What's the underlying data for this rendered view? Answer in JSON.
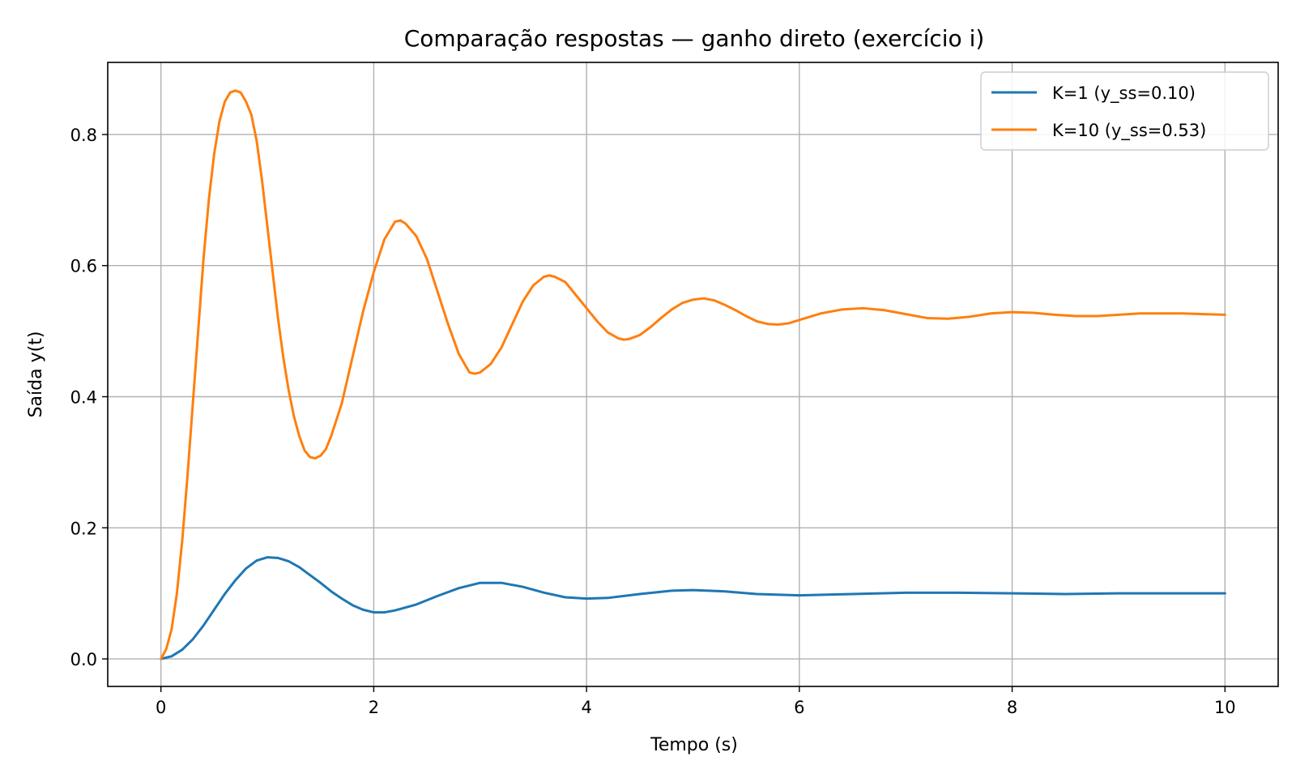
{
  "chart_data": {
    "type": "line",
    "title": "Comparação respostas — ganho direto (exercício i)",
    "xlabel": "Tempo (s)",
    "ylabel": "Saída y(t)",
    "xlim": [
      -0.5,
      10.5
    ],
    "ylim": [
      -0.042,
      0.91
    ],
    "xticks": [
      0,
      2,
      4,
      6,
      8,
      10
    ],
    "xtick_labels": [
      "0",
      "2",
      "4",
      "6",
      "8",
      "10"
    ],
    "yticks": [
      0.0,
      0.2,
      0.4,
      0.6,
      0.8
    ],
    "ytick_labels": [
      "0.0",
      "0.2",
      "0.4",
      "0.6",
      "0.8"
    ],
    "grid": true,
    "legend_position": "top-right",
    "series": [
      {
        "name": "K=1 (y_ss=0.10)",
        "color": "#1f77b4",
        "points": [
          [
            0,
            0
          ],
          [
            0.1,
            0.004
          ],
          [
            0.2,
            0.014
          ],
          [
            0.3,
            0.03
          ],
          [
            0.4,
            0.051
          ],
          [
            0.5,
            0.075
          ],
          [
            0.6,
            0.099
          ],
          [
            0.7,
            0.12
          ],
          [
            0.8,
            0.138
          ],
          [
            0.9,
            0.15
          ],
          [
            1.0,
            0.155
          ],
          [
            1.1,
            0.154
          ],
          [
            1.2,
            0.149
          ],
          [
            1.3,
            0.14
          ],
          [
            1.4,
            0.128
          ],
          [
            1.5,
            0.116
          ],
          [
            1.6,
            0.103
          ],
          [
            1.7,
            0.092
          ],
          [
            1.8,
            0.082
          ],
          [
            1.9,
            0.075
          ],
          [
            2.0,
            0.071
          ],
          [
            2.1,
            0.071
          ],
          [
            2.2,
            0.074
          ],
          [
            2.4,
            0.083
          ],
          [
            2.6,
            0.096
          ],
          [
            2.8,
            0.108
          ],
          [
            3.0,
            0.116
          ],
          [
            3.2,
            0.116
          ],
          [
            3.4,
            0.11
          ],
          [
            3.6,
            0.101
          ],
          [
            3.8,
            0.094
          ],
          [
            4.0,
            0.092
          ],
          [
            4.2,
            0.093
          ],
          [
            4.5,
            0.099
          ],
          [
            4.8,
            0.104
          ],
          [
            5.0,
            0.105
          ],
          [
            5.3,
            0.103
          ],
          [
            5.6,
            0.099
          ],
          [
            6.0,
            0.097
          ],
          [
            6.5,
            0.099
          ],
          [
            7.0,
            0.101
          ],
          [
            7.5,
            0.101
          ],
          [
            8.0,
            0.1
          ],
          [
            8.5,
            0.099
          ],
          [
            9.0,
            0.1
          ],
          [
            9.5,
            0.1
          ],
          [
            10.0,
            0.1
          ]
        ]
      },
      {
        "name": "K=10 (y_ss=0.53)",
        "color": "#ff7f0e",
        "points": [
          [
            0,
            0
          ],
          [
            0.05,
            0.015
          ],
          [
            0.1,
            0.045
          ],
          [
            0.15,
            0.1
          ],
          [
            0.2,
            0.18
          ],
          [
            0.25,
            0.28
          ],
          [
            0.3,
            0.39
          ],
          [
            0.35,
            0.5
          ],
          [
            0.4,
            0.61
          ],
          [
            0.45,
            0.7
          ],
          [
            0.5,
            0.77
          ],
          [
            0.55,
            0.82
          ],
          [
            0.6,
            0.85
          ],
          [
            0.65,
            0.864
          ],
          [
            0.7,
            0.867
          ],
          [
            0.75,
            0.864
          ],
          [
            0.8,
            0.85
          ],
          [
            0.85,
            0.83
          ],
          [
            0.9,
            0.79
          ],
          [
            0.95,
            0.73
          ],
          [
            1.0,
            0.66
          ],
          [
            1.05,
            0.59
          ],
          [
            1.1,
            0.52
          ],
          [
            1.15,
            0.46
          ],
          [
            1.2,
            0.41
          ],
          [
            1.25,
            0.37
          ],
          [
            1.3,
            0.34
          ],
          [
            1.35,
            0.318
          ],
          [
            1.4,
            0.308
          ],
          [
            1.45,
            0.306
          ],
          [
            1.5,
            0.31
          ],
          [
            1.55,
            0.32
          ],
          [
            1.6,
            0.34
          ],
          [
            1.7,
            0.39
          ],
          [
            1.8,
            0.46
          ],
          [
            1.9,
            0.53
          ],
          [
            2.0,
            0.59
          ],
          [
            2.1,
            0.64
          ],
          [
            2.2,
            0.667
          ],
          [
            2.25,
            0.669
          ],
          [
            2.3,
            0.664
          ],
          [
            2.4,
            0.645
          ],
          [
            2.5,
            0.61
          ],
          [
            2.6,
            0.56
          ],
          [
            2.7,
            0.51
          ],
          [
            2.8,
            0.465
          ],
          [
            2.9,
            0.437
          ],
          [
            2.95,
            0.435
          ],
          [
            3.0,
            0.437
          ],
          [
            3.1,
            0.45
          ],
          [
            3.2,
            0.475
          ],
          [
            3.3,
            0.51
          ],
          [
            3.4,
            0.545
          ],
          [
            3.5,
            0.57
          ],
          [
            3.6,
            0.583
          ],
          [
            3.65,
            0.585
          ],
          [
            3.7,
            0.583
          ],
          [
            3.8,
            0.575
          ],
          [
            3.9,
            0.555
          ],
          [
            4.0,
            0.535
          ],
          [
            4.1,
            0.515
          ],
          [
            4.2,
            0.498
          ],
          [
            4.3,
            0.489
          ],
          [
            4.35,
            0.487
          ],
          [
            4.4,
            0.488
          ],
          [
            4.5,
            0.494
          ],
          [
            4.6,
            0.506
          ],
          [
            4.7,
            0.52
          ],
          [
            4.8,
            0.533
          ],
          [
            4.9,
            0.543
          ],
          [
            5.0,
            0.548
          ],
          [
            5.1,
            0.55
          ],
          [
            5.2,
            0.547
          ],
          [
            5.3,
            0.54
          ],
          [
            5.4,
            0.532
          ],
          [
            5.5,
            0.523
          ],
          [
            5.6,
            0.515
          ],
          [
            5.7,
            0.511
          ],
          [
            5.8,
            0.51
          ],
          [
            5.9,
            0.512
          ],
          [
            6.0,
            0.517
          ],
          [
            6.2,
            0.527
          ],
          [
            6.4,
            0.533
          ],
          [
            6.6,
            0.535
          ],
          [
            6.8,
            0.532
          ],
          [
            7.0,
            0.526
          ],
          [
            7.2,
            0.52
          ],
          [
            7.4,
            0.519
          ],
          [
            7.6,
            0.522
          ],
          [
            7.8,
            0.527
          ],
          [
            8.0,
            0.529
          ],
          [
            8.2,
            0.528
          ],
          [
            8.4,
            0.525
          ],
          [
            8.6,
            0.523
          ],
          [
            8.8,
            0.523
          ],
          [
            9.0,
            0.525
          ],
          [
            9.2,
            0.527
          ],
          [
            9.4,
            0.527
          ],
          [
            9.6,
            0.527
          ],
          [
            9.8,
            0.526
          ],
          [
            10.0,
            0.525
          ]
        ]
      }
    ]
  },
  "colors": {
    "grid": "#b0b0b0",
    "axes": "#000000",
    "legend_border": "#cccccc"
  }
}
